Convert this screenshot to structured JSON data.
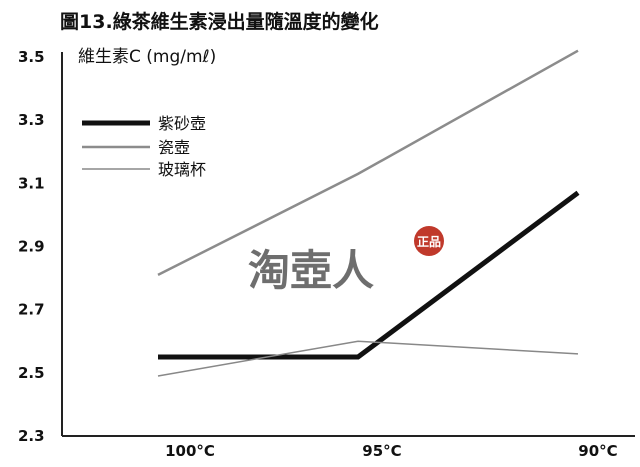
{
  "chart_data": {
    "type": "line",
    "title": "圖13.綠茶維生素浸出量隨溫度的變化",
    "ylabel": "維生素C (mg/mℓ)",
    "xlabel": "",
    "categories": [
      "100°C",
      "95°C",
      "90°C"
    ],
    "ylim": [
      2.3,
      3.5
    ],
    "yticks": [
      "3.5",
      "3.3",
      "3.1",
      "2.9",
      "2.7",
      "2.5",
      "2.3"
    ],
    "grid": false,
    "legend_position": "top-left",
    "series": [
      {
        "name": "紫砂壺",
        "values": [
          2.55,
          2.55,
          3.07
        ],
        "color": "#111111"
      },
      {
        "name": "瓷壺",
        "values": [
          2.81,
          3.13,
          3.52
        ],
        "color": "#8c8c8c"
      },
      {
        "name": "玻璃杯",
        "values": [
          2.49,
          2.6,
          2.56
        ],
        "color": "#888888"
      }
    ]
  },
  "watermark": {
    "text": "淘壺人",
    "seal": "正品"
  }
}
